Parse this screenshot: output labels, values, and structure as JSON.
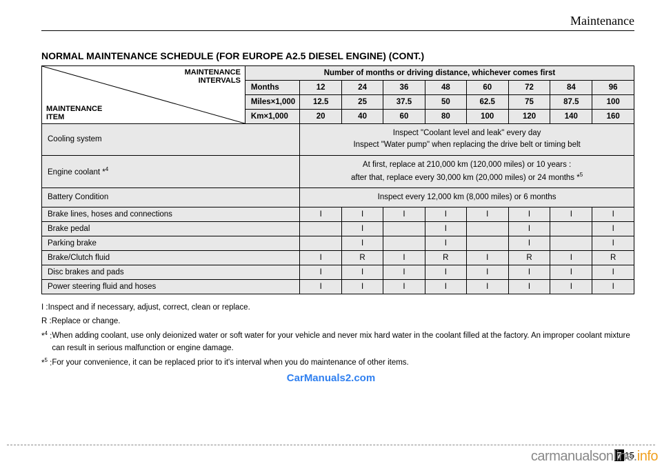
{
  "header": {
    "title": "Maintenance"
  },
  "schedule_title": "NORMAL MAINTENANCE SCHEDULE (FOR EUROPE A2.5 DIESEL ENGINE) (CONT.)",
  "table": {
    "diag_top": "MAINTENANCE\nINTERVALS",
    "diag_bottom": "MAINTENANCE\nITEM",
    "span_header": "Number of months or driving distance, whichever comes first",
    "header_rows": [
      {
        "label": "Months",
        "vals": [
          "12",
          "24",
          "36",
          "48",
          "60",
          "72",
          "84",
          "96"
        ]
      },
      {
        "label": "Miles×1,000",
        "vals": [
          "12.5",
          "25",
          "37.5",
          "50",
          "62.5",
          "75",
          "87.5",
          "100"
        ]
      },
      {
        "label": "Km×1,000",
        "vals": [
          "20",
          "40",
          "60",
          "80",
          "100",
          "120",
          "140",
          "160"
        ]
      }
    ],
    "body_rows": [
      {
        "item": "Cooling system",
        "span_text": "Inspect \"Coolant level and leak\" every day\nInspect \"Water pump\" when replacing the drive belt or timing belt"
      },
      {
        "item_html": "Engine coolant *",
        "item_sup": "4",
        "span_text_html": "At first, replace at 210,000 km (120,000 miles) or 10 years :\nafter that, replace every 30,000 km (20,000 miles) or 24 months *",
        "span_sup": "5"
      },
      {
        "item": "Battery Condition",
        "span_text": "Inspect every 12,000 km (8,000 miles) or 6 months"
      },
      {
        "item": "Brake lines, hoses and connections",
        "vals": [
          "I",
          "I",
          "I",
          "I",
          "I",
          "I",
          "I",
          "I"
        ]
      },
      {
        "item": "Brake pedal",
        "vals": [
          "",
          "I",
          "",
          "I",
          "",
          "I",
          "",
          "I"
        ]
      },
      {
        "item": "Parking brake",
        "vals": [
          "",
          "I",
          "",
          "I",
          "",
          "I",
          "",
          "I"
        ]
      },
      {
        "item": "Brake/Clutch fluid",
        "vals": [
          "I",
          "R",
          "I",
          "R",
          "I",
          "R",
          "I",
          "R"
        ]
      },
      {
        "item": "Disc brakes and pads",
        "vals": [
          "I",
          "I",
          "I",
          "I",
          "I",
          "I",
          "I",
          "I"
        ]
      },
      {
        "item": "Power steering fluid and hoses",
        "vals": [
          "I",
          "I",
          "I",
          "I",
          "I",
          "I",
          "I",
          "I"
        ]
      }
    ]
  },
  "legend": [
    {
      "key": "I  : ",
      "body": "Inspect and if necessary, adjust, correct, clean or replace."
    },
    {
      "key": "R : ",
      "body": "Replace or change."
    },
    {
      "key": "*4 : ",
      "sup": true,
      "body": "When adding coolant, use only deionized water or soft water for your vehicle and never mix hard water in the coolant filled at the factory. An improper coolant mixture can result in serious malfunction or engine damage."
    },
    {
      "key": "*5 : ",
      "sup": true,
      "body": "For your convenience, it can be replaced prior to it's interval when you do maintenance of other items."
    }
  ],
  "watermark": "CarManuals2.com",
  "page": {
    "chapter": "7",
    "page": "15"
  },
  "brand": {
    "part1": "carmanualsonline.",
    "part2": "info"
  },
  "colors": {
    "gray": "#e8e8e8",
    "blue": "#3080f0",
    "orange": "#f0a020",
    "dash": "#888888"
  }
}
